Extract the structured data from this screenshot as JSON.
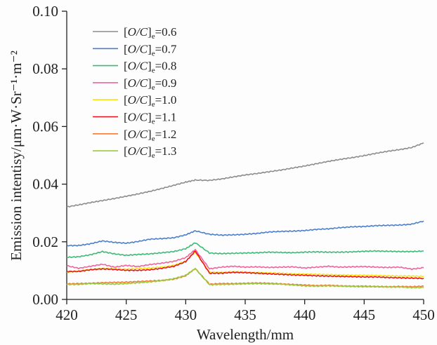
{
  "chart_data": {
    "type": "line",
    "title": "",
    "xlabel": "Wavelength/mm",
    "ylabel": "Emission intentisy/μm·W·Sr⁻¹·m⁻²",
    "xlim": [
      420,
      450
    ],
    "ylim": [
      0.0,
      0.1
    ],
    "xticks": [
      420,
      425,
      430,
      435,
      440,
      445,
      450
    ],
    "xtick_labels": [
      "420",
      "425",
      "430",
      "435",
      "440",
      "445",
      "450"
    ],
    "yticks": [
      0.0,
      0.02,
      0.04,
      0.06,
      0.08,
      0.1
    ],
    "ytick_labels": [
      "0.00",
      "0.02",
      "0.04",
      "0.06",
      "0.08",
      "0.10"
    ],
    "grid": false,
    "legend_position": "top-left",
    "x": [
      420,
      421,
      422,
      423,
      424,
      425,
      426,
      427,
      428,
      429,
      430,
      430.8,
      432,
      433,
      434,
      435,
      436,
      437,
      438,
      439,
      440,
      441,
      442,
      443,
      444,
      445,
      446,
      447,
      448,
      449,
      450
    ],
    "series": [
      {
        "name": "[O/C]e=0.6",
        "label_prefix": "[O/C]",
        "label_sub": "e",
        "label_value": "=0.6",
        "color": "#8c8c8c",
        "values": [
          0.0321,
          0.0328,
          0.0336,
          0.0343,
          0.035,
          0.0358,
          0.0366,
          0.0375,
          0.0385,
          0.0396,
          0.0407,
          0.0414,
          0.0413,
          0.0418,
          0.0425,
          0.0432,
          0.0437,
          0.0443,
          0.0449,
          0.0456,
          0.0463,
          0.0471,
          0.0479,
          0.0486,
          0.0492,
          0.0499,
          0.0507,
          0.0514,
          0.052,
          0.0527,
          0.0543
        ]
      },
      {
        "name": "[O/C]e=0.7",
        "label_prefix": "[O/C]",
        "label_sub": "e",
        "label_value": "=0.7",
        "color": "#4a7fcf",
        "values": [
          0.0187,
          0.0187,
          0.0193,
          0.0203,
          0.0198,
          0.0195,
          0.0201,
          0.0209,
          0.0211,
          0.0214,
          0.0224,
          0.0238,
          0.0226,
          0.0223,
          0.0224,
          0.0226,
          0.0229,
          0.0234,
          0.0236,
          0.0237,
          0.0239,
          0.0243,
          0.0245,
          0.0249,
          0.0252,
          0.0253,
          0.0256,
          0.0257,
          0.0258,
          0.0261,
          0.0272
        ]
      },
      {
        "name": "[O/C]e=0.8",
        "label_prefix": "[O/C]",
        "label_sub": "e",
        "label_value": "=0.8",
        "color": "#3dba78",
        "values": [
          0.0146,
          0.0148,
          0.0155,
          0.0166,
          0.0158,
          0.0153,
          0.0156,
          0.0158,
          0.0162,
          0.0166,
          0.0176,
          0.0197,
          0.0161,
          0.0159,
          0.016,
          0.0161,
          0.0162,
          0.0164,
          0.0163,
          0.0162,
          0.0164,
          0.0165,
          0.0164,
          0.0164,
          0.0165,
          0.0167,
          0.0168,
          0.0167,
          0.0166,
          0.0166,
          0.0168
        ]
      },
      {
        "name": "[O/C]e=0.9",
        "label_prefix": "[O/C]",
        "label_sub": "e",
        "label_value": "=0.9",
        "color": "#f0639d",
        "values": [
          0.0117,
          0.0108,
          0.0115,
          0.0122,
          0.0112,
          0.0118,
          0.0114,
          0.0121,
          0.0126,
          0.0132,
          0.0145,
          0.0173,
          0.0106,
          0.0112,
          0.0115,
          0.0112,
          0.0113,
          0.0111,
          0.0112,
          0.0113,
          0.0109,
          0.0112,
          0.0115,
          0.0112,
          0.0113,
          0.0114,
          0.0112,
          0.0111,
          0.0112,
          0.0105,
          0.011
        ]
      },
      {
        "name": "[O/C]e=1.0",
        "label_prefix": "[O/C]",
        "label_sub": "e",
        "label_value": "=1.0",
        "color": "#f5e51a",
        "values": [
          0.0094,
          0.0099,
          0.0104,
          0.0107,
          0.0106,
          0.0105,
          0.0107,
          0.0109,
          0.0112,
          0.0118,
          0.0133,
          0.0164,
          0.0095,
          0.0094,
          0.0096,
          0.0095,
          0.0093,
          0.0092,
          0.0091,
          0.0089,
          0.0088,
          0.0087,
          0.0086,
          0.0085,
          0.0084,
          0.0084,
          0.0083,
          0.0082,
          0.0081,
          0.0081,
          0.008
        ]
      },
      {
        "name": "[O/C]e=1.1",
        "label_prefix": "[O/C]",
        "label_sub": "e",
        "label_value": "=1.1",
        "color": "#e8151c",
        "values": [
          0.0097,
          0.0097,
          0.0103,
          0.0106,
          0.0104,
          0.0101,
          0.0101,
          0.0103,
          0.0108,
          0.0115,
          0.0131,
          0.0168,
          0.0091,
          0.0091,
          0.0094,
          0.0093,
          0.0091,
          0.0089,
          0.0087,
          0.0085,
          0.0084,
          0.0082,
          0.0081,
          0.008,
          0.0079,
          0.0078,
          0.0078,
          0.0076,
          0.0075,
          0.0074,
          0.0073
        ]
      },
      {
        "name": "[O/C]e=1.2",
        "label_prefix": "[O/C]",
        "label_sub": "e",
        "label_value": "=1.2",
        "color": "#f07c3a",
        "values": [
          0.0054,
          0.0055,
          0.0056,
          0.0058,
          0.0059,
          0.006,
          0.0062,
          0.0064,
          0.0066,
          0.007,
          0.0082,
          0.0107,
          0.0053,
          0.0055,
          0.0055,
          0.0056,
          0.0057,
          0.0056,
          0.0054,
          0.0052,
          0.005,
          0.0048,
          0.0049,
          0.0047,
          0.0046,
          0.0046,
          0.0045,
          0.0044,
          0.0045,
          0.0044,
          0.0046
        ]
      },
      {
        "name": "[O/C]e=1.3",
        "label_prefix": "[O/C]",
        "label_sub": "e",
        "label_value": "=1.3",
        "color": "#9acc3c",
        "values": [
          0.0052,
          0.0052,
          0.0055,
          0.0054,
          0.0053,
          0.0055,
          0.0058,
          0.0061,
          0.0065,
          0.0072,
          0.0084,
          0.0107,
          0.0051,
          0.0052,
          0.0053,
          0.0054,
          0.0055,
          0.0054,
          0.0053,
          0.005,
          0.0047,
          0.0046,
          0.0047,
          0.0046,
          0.0045,
          0.0044,
          0.0044,
          0.0043,
          0.0043,
          0.0041,
          0.0041
        ]
      }
    ]
  }
}
